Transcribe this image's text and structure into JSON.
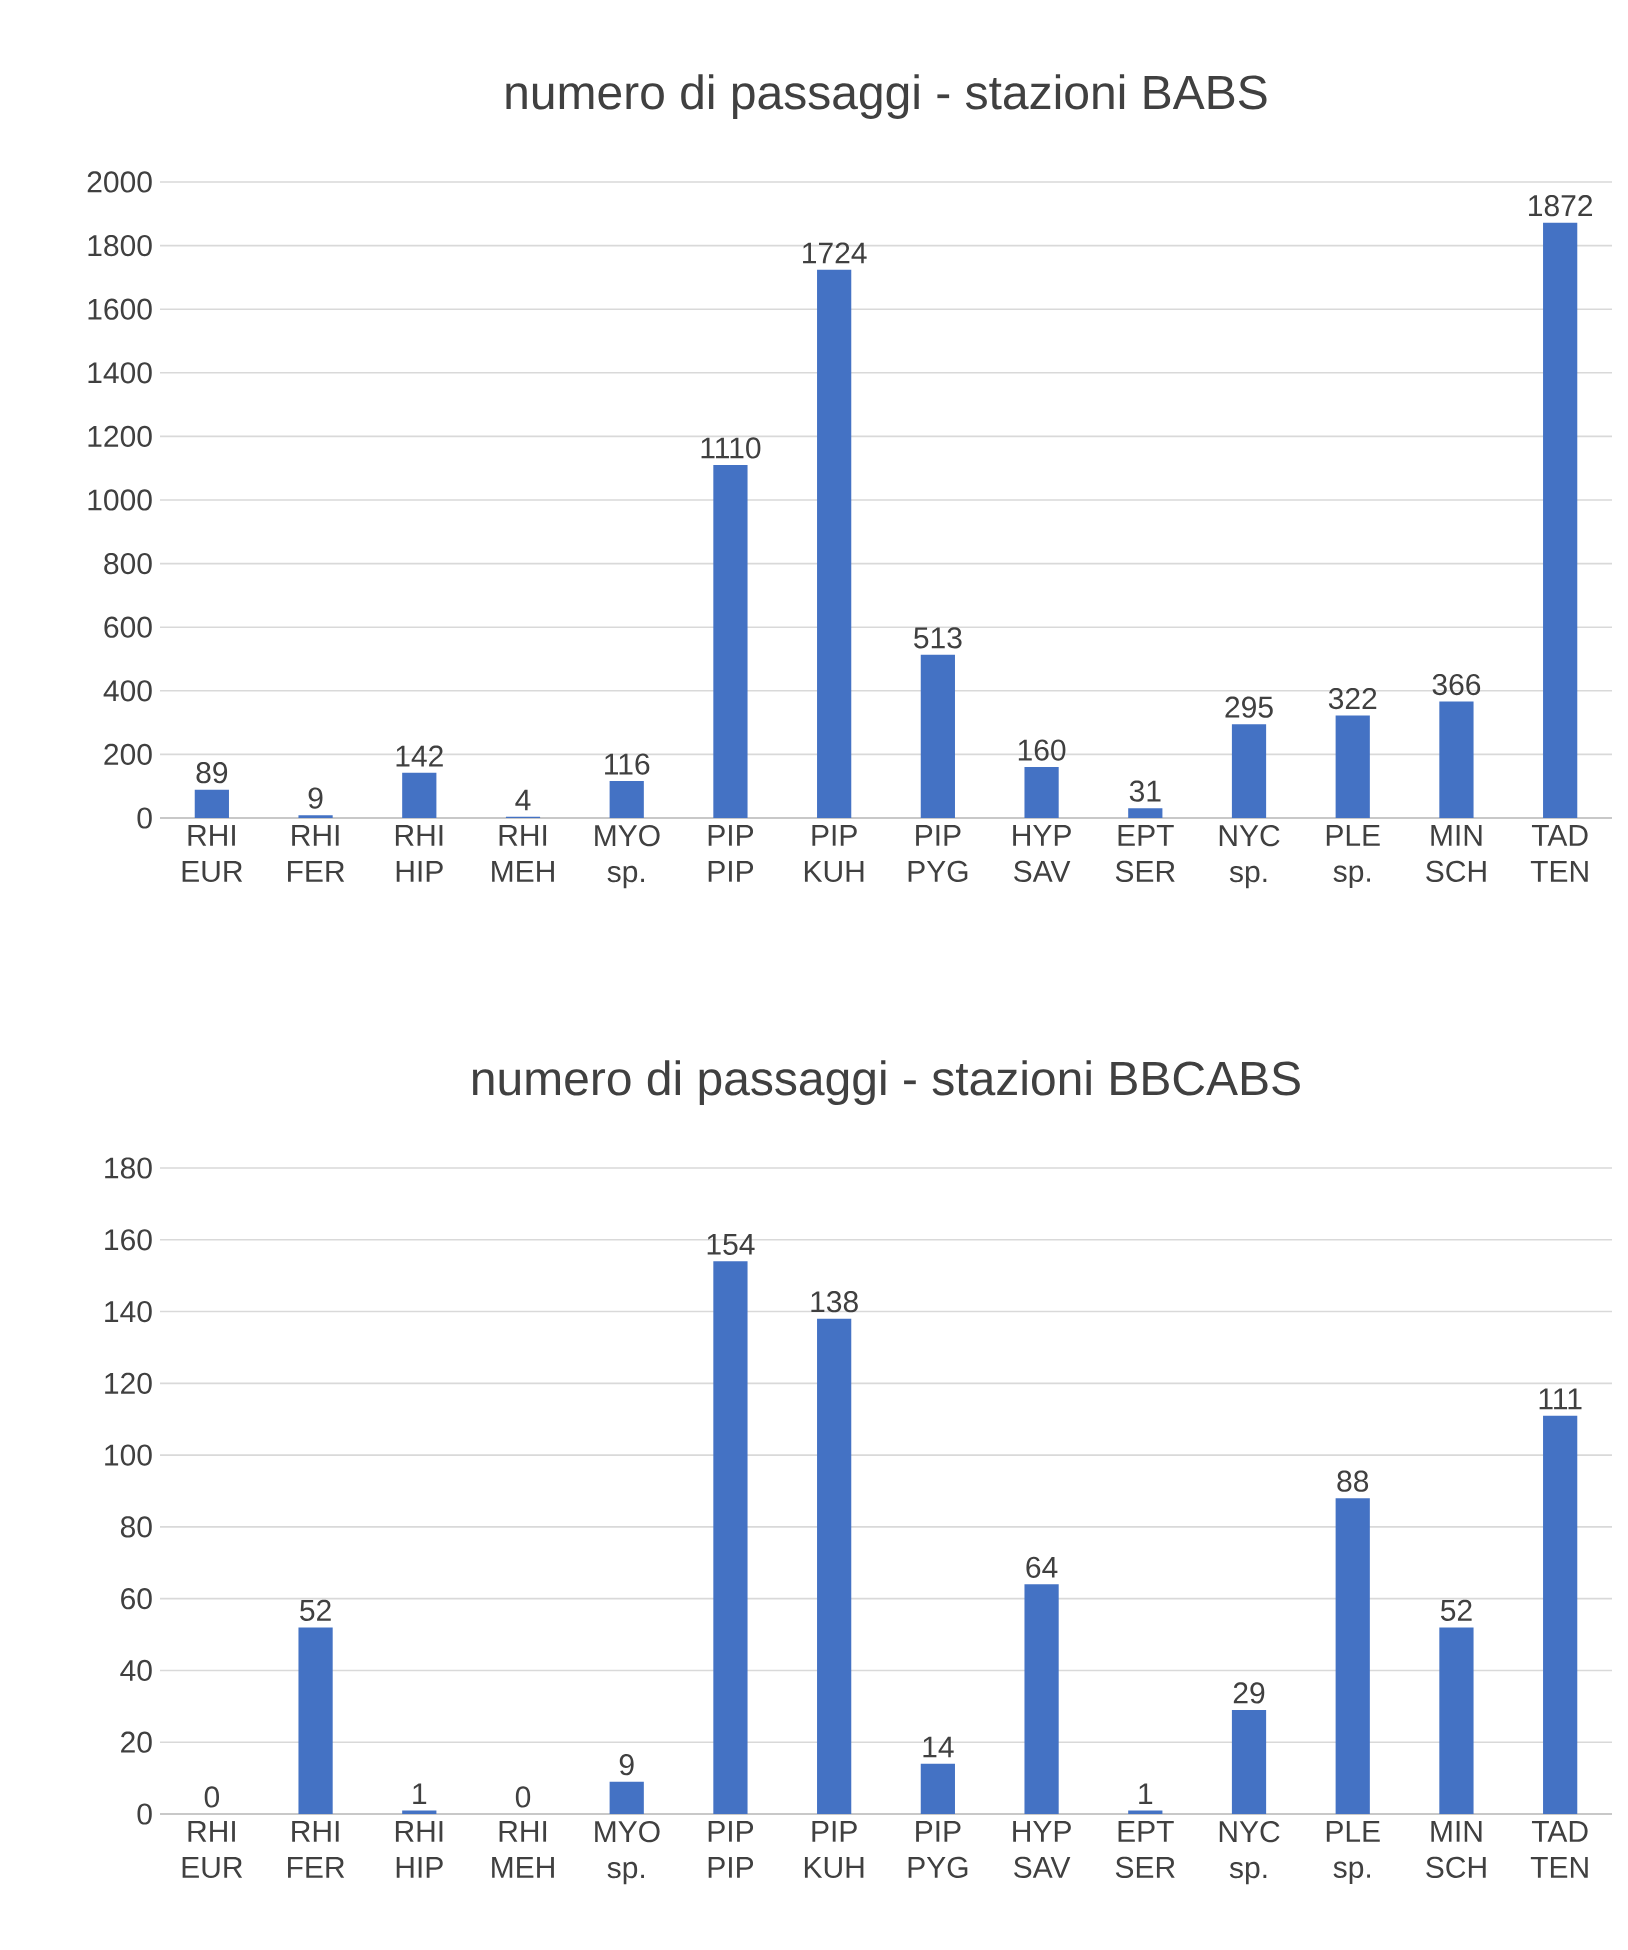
{
  "chart_data": [
    {
      "type": "bar",
      "title": "numero di passaggi - stazioni BABS",
      "categories": [
        "RHI EUR",
        "RHI FER",
        "RHI HIP",
        "RHI MEH",
        "MYO sp.",
        "PIP PIP",
        "PIP KUH",
        "PIP PYG",
        "HYP SAV",
        "EPT SER",
        "NYC sp.",
        "PLE sp.",
        "MIN SCH",
        "TAD TEN"
      ],
      "values": [
        89,
        9,
        142,
        4,
        116,
        1110,
        1724,
        513,
        160,
        31,
        295,
        322,
        366,
        1872
      ],
      "color": "#4472c4",
      "ylim": [
        0,
        2000
      ],
      "yticks": [
        0,
        200,
        400,
        600,
        800,
        1000,
        1200,
        1400,
        1600,
        1800,
        2000
      ],
      "grid": "y",
      "data_labels": true
    },
    {
      "type": "bar",
      "title": "numero di passaggi - stazioni BBCABS",
      "categories": [
        "RHI EUR",
        "RHI FER",
        "RHI HIP",
        "RHI MEH",
        "MYO sp.",
        "PIP PIP",
        "PIP KUH",
        "PIP PYG",
        "HYP SAV",
        "EPT SER",
        "NYC sp.",
        "PLE sp.",
        "MIN SCH",
        "TAD TEN"
      ],
      "values": [
        0,
        52,
        1,
        0,
        9,
        154,
        138,
        14,
        64,
        1,
        29,
        88,
        52,
        111
      ],
      "color": "#4472c4",
      "ylim": [
        0,
        180
      ],
      "yticks": [
        0,
        20,
        40,
        60,
        80,
        100,
        120,
        140,
        160,
        180
      ],
      "grid": "y",
      "data_labels": true
    }
  ]
}
